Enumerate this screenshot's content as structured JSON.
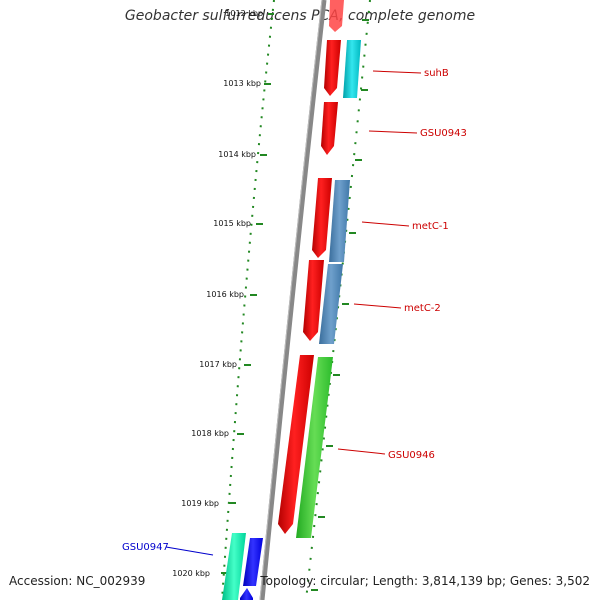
{
  "title": "Geobacter sulfurreducens PCA, complete genome",
  "footer": {
    "accession_label": "Accession:",
    "accession": "NC_002939",
    "topology_label": "Topology:",
    "topology": "circular",
    "length_label": "Length:",
    "length": "3,814,139 bp",
    "genes_label": "Genes:",
    "genes": "3,502"
  },
  "ruler": {
    "unit": "kbp",
    "labels": [
      "1012 kbp",
      "1013 kbp",
      "1014 kbp",
      "1015 kbp",
      "1016 kbp",
      "1017 kbp",
      "1018 kbp",
      "1019 kbp",
      "1020 kbp"
    ]
  },
  "gene_labels": [
    {
      "name": "suhB",
      "color": "#cc0000"
    },
    {
      "name": "GSU0943",
      "color": "#cc0000"
    },
    {
      "name": "metC-1",
      "color": "#cc0000"
    },
    {
      "name": "metC-2",
      "color": "#cc0000"
    },
    {
      "name": "GSU0946",
      "color": "#cc0000"
    },
    {
      "name": "GSU0947",
      "color": "#0000cc"
    }
  ],
  "colors": {
    "backbone": "#888888",
    "ticks": "#228822",
    "gene_red": "#ff0000",
    "gene_cyan": "#00cccc",
    "gene_steelblue": "#4682b4",
    "gene_green": "#33cc33",
    "gene_teal": "#00e0a0",
    "gene_blue": "#0000ff"
  }
}
